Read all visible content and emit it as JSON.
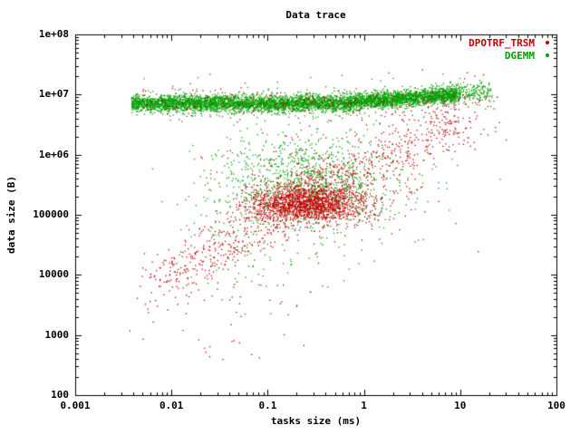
{
  "title": "Data trace",
  "chart_data": {
    "type": "scatter",
    "title": "Data trace",
    "xlabel": "tasks size (ms)",
    "ylabel": "data size (B)",
    "xscale": "log",
    "yscale": "log",
    "xlim": [
      0.001,
      100
    ],
    "ylim": [
      100,
      100000000
    ],
    "x_tick_labels": [
      "0.001",
      "0.01",
      "0.1",
      "1",
      "10",
      "100"
    ],
    "x_tick_values": [
      0.001,
      0.01,
      0.1,
      1,
      10,
      100
    ],
    "y_tick_labels": [
      "100",
      "1000",
      "10000",
      "100000",
      "1e+06",
      "1e+07",
      "1e+08"
    ],
    "y_tick_values": [
      100,
      1000,
      10000,
      100000,
      1000000,
      10000000,
      100000000
    ],
    "grid": false,
    "legend_position": "top-right",
    "marker_size_px": 1.3,
    "series": [
      {
        "name": "DPOTRF_TRSM",
        "color": "#c00000",
        "marker": "dot",
        "clusters": [
          {
            "type": "trend",
            "n": 850,
            "x0": -2.15,
            "y0": 3.9,
            "x1": 0.95,
            "y1": 6.6,
            "spread": 0.24,
            "xjitter": 0.1
          },
          {
            "type": "gauss",
            "n": 1500,
            "cx": -0.58,
            "cy": 5.2,
            "sx": 0.3,
            "sy": 0.16
          },
          {
            "type": "gauss",
            "n": 250,
            "cx": -0.4,
            "cy": 5.5,
            "sx": 0.55,
            "sy": 0.5
          },
          {
            "type": "band",
            "n": 230,
            "x0": -2.35,
            "x1": 1.3,
            "cy": 6.88,
            "sy": 0.12
          },
          {
            "type": "gauss",
            "n": 60,
            "cx": -1.5,
            "cy": 3.55,
            "sx": 0.4,
            "sy": 0.5
          },
          {
            "type": "gauss",
            "n": 70,
            "cx": 1.0,
            "cy": 6.7,
            "sx": 0.25,
            "sy": 0.35
          }
        ]
      },
      {
        "name": "DGEMM",
        "color": "#00a000",
        "marker": "dot",
        "clusters": [
          {
            "type": "band",
            "n": 3300,
            "x0": -2.42,
            "x1": -0.2,
            "cy": 6.86,
            "sy": 0.07
          },
          {
            "type": "trend",
            "n": 2000,
            "x0": -0.2,
            "y0": 6.87,
            "x1": 1.0,
            "y1": 7.02,
            "spread": 0.07,
            "xjitter": 0.0
          },
          {
            "type": "band",
            "n": 140,
            "x0": 1.0,
            "x1": 1.33,
            "cy": 7.03,
            "sy": 0.09
          },
          {
            "type": "band",
            "n": 130,
            "x0": -2.35,
            "x1": 1.0,
            "cy": 6.9,
            "sy": 0.22
          },
          {
            "type": "gauss",
            "n": 850,
            "cx": -0.6,
            "cy": 5.55,
            "sx": 0.45,
            "sy": 0.35
          },
          {
            "type": "gauss",
            "n": 250,
            "cx": -0.55,
            "cy": 5.4,
            "sx": 0.65,
            "sy": 0.55
          },
          {
            "type": "gauss",
            "n": 110,
            "cx": -0.85,
            "cy": 4.7,
            "sx": 0.45,
            "sy": 0.55
          }
        ]
      }
    ]
  }
}
